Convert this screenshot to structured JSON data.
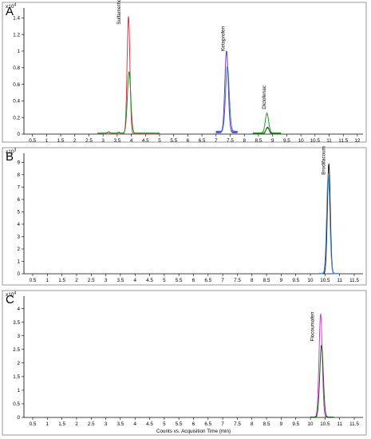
{
  "chart_data": [
    {
      "type": "line",
      "panel_label": "A",
      "scale_label": "x10",
      "scale_exponent": "4",
      "xlim": [
        0.2,
        12.2
      ],
      "xticks": [
        "0.5",
        "1",
        "1.5",
        "2",
        "2.5",
        "3",
        "3.5",
        "4",
        "4.5",
        "5",
        "5.5",
        "6",
        "6.5",
        "7",
        "7.5",
        "8",
        "8.5",
        "9",
        "9.5",
        "10",
        "10.5",
        "11",
        "11.5",
        "12"
      ],
      "ylim": [
        0,
        1.5
      ],
      "yticks": [
        "0",
        "0.2",
        "0.4",
        "0.6",
        "0.8",
        "1",
        "1.2",
        "1.4"
      ],
      "peaks": [
        {
          "label": "Sulfamethoxazole",
          "x": 3.9,
          "label_x": 3.62,
          "label_y": 1.32
        },
        {
          "label": "Ketoprofen",
          "x": 7.38,
          "label_x": 7.3,
          "label_y": 1.0
        },
        {
          "label": "Diclofenac",
          "x": 8.8,
          "label_x": 8.75,
          "label_y": 0.3
        }
      ],
      "series": [
        {
          "color": "#d93a4a",
          "window": [
            3.0,
            4.9
          ],
          "peaks": [
            {
              "x": 3.9,
              "height": 1.42,
              "width": 0.05
            }
          ],
          "base": 0.0
        },
        {
          "color": "#2a8a2a",
          "window": [
            2.8,
            5.0
          ],
          "peaks": [
            {
              "x": 3.92,
              "height": 0.74,
              "width": 0.06
            },
            {
              "x": 3.2,
              "height": 0.015,
              "width": 0.04
            },
            {
              "x": 3.55,
              "height": 0.01,
              "width": 0.04
            }
          ],
          "base": 0.01
        },
        {
          "color": "#6a3fbf",
          "window": [
            7.0,
            7.75
          ],
          "peaks": [
            {
              "x": 7.37,
              "height": 0.98,
              "width": 0.06
            }
          ],
          "base": 0.02
        },
        {
          "color": "#3d6fd6",
          "window": [
            7.0,
            7.75
          ],
          "peaks": [
            {
              "x": 7.4,
              "height": 0.78,
              "width": 0.065
            }
          ],
          "base": 0.03
        },
        {
          "color": "#2a9a2a",
          "window": [
            8.3,
            9.3
          ],
          "peaks": [
            {
              "x": 8.8,
              "height": 0.24,
              "width": 0.06
            }
          ],
          "base": 0.01
        },
        {
          "color": "#1a6a1a",
          "window": [
            8.3,
            9.3
          ],
          "peaks": [
            {
              "x": 8.82,
              "height": 0.08,
              "width": 0.06
            }
          ],
          "base": 0.0
        }
      ]
    },
    {
      "type": "line",
      "panel_label": "B",
      "scale_label": "x10",
      "scale_exponent": "3",
      "xlim": [
        0.2,
        11.8
      ],
      "xticks": [
        "0.5",
        "1",
        "1.5",
        "2",
        "2.5",
        "3",
        "3.5",
        "4",
        "4.5",
        "5",
        "5.5",
        "6",
        "6.5",
        "7",
        "7.5",
        "8",
        "8.5",
        "9",
        "9.5",
        "10",
        "10.5",
        "11",
        "11.5"
      ],
      "ylim": [
        0,
        9.6
      ],
      "yticks": [
        "0",
        "1",
        "2",
        "3",
        "4",
        "5",
        "6",
        "7",
        "8",
        "9"
      ],
      "peaks": [
        {
          "label": "Brodifacoum",
          "x": 10.6,
          "label_x": 10.5,
          "label_y": 8.0
        }
      ],
      "series": [
        {
          "color": "#1a1a1a",
          "window": [
            10.3,
            10.95
          ],
          "peaks": [
            {
              "x": 10.63,
              "height": 8.85,
              "width": 0.05
            }
          ],
          "base": 0.0
        },
        {
          "color": "#4a90d0",
          "window": [
            10.3,
            10.95
          ],
          "peaks": [
            {
              "x": 10.61,
              "height": 8.05,
              "width": 0.055
            }
          ],
          "base": 0.0
        }
      ]
    },
    {
      "type": "line",
      "panel_label": "C",
      "scale_label": "x10",
      "scale_exponent": "4",
      "xlim": [
        0.2,
        11.8
      ],
      "xticks": [
        "0.5",
        "1",
        "1.5",
        "2",
        "2.5",
        "3",
        "3.5",
        "4",
        "4.5",
        "5",
        "5.5",
        "6",
        "6.5",
        "7",
        "7.5",
        "8",
        "8.5",
        "9",
        "9.5",
        "10",
        "10.5",
        "11",
        "11.5"
      ],
      "ylim": [
        0,
        4.4
      ],
      "yticks": [
        "0",
        "0.5",
        "1",
        "1.5",
        "2",
        "2.5",
        "3",
        "3.5",
        "4"
      ],
      "peaks": [
        {
          "label": "Flocoumafen",
          "x": 10.35,
          "label_x": 10.12,
          "label_y": 2.8
        }
      ],
      "series": [
        {
          "color": "#cc44cc",
          "window": [
            10.0,
            10.8
          ],
          "peaks": [
            {
              "x": 10.35,
              "height": 3.8,
              "width": 0.055
            }
          ],
          "base": 0.0
        },
        {
          "color": "#1a5a1a",
          "window": [
            10.0,
            10.8
          ],
          "peaks": [
            {
              "x": 10.38,
              "height": 2.65,
              "width": 0.06
            }
          ],
          "base": 0.0
        }
      ],
      "xlabel": "Counts vs. Acquisition Time (min)"
    }
  ]
}
